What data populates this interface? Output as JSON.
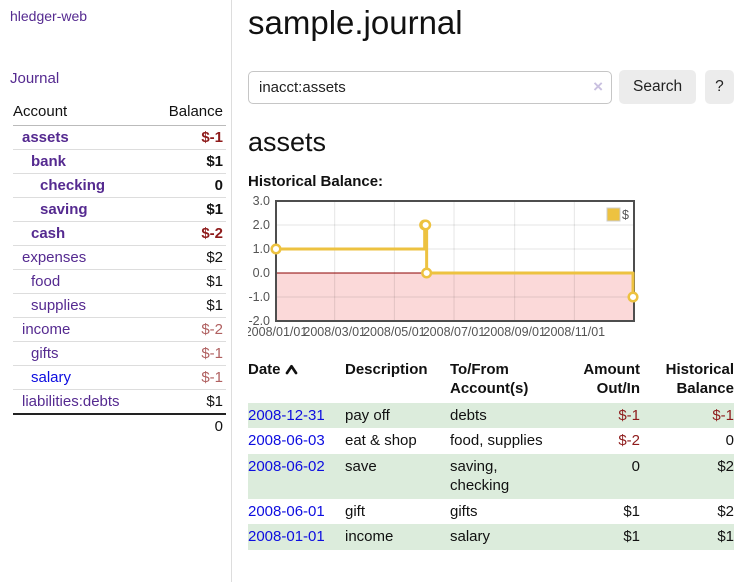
{
  "app": {
    "brand": "hledger-web",
    "nav_journal": "Journal"
  },
  "sidebar": {
    "accounts_table": {
      "headers": {
        "account": "Account",
        "balance": "Balance"
      },
      "rows": [
        {
          "name": "assets",
          "depth": 0,
          "bold": true,
          "link_color": "purple",
          "balance": "$-1",
          "balance_style": "negative"
        },
        {
          "name": "bank",
          "depth": 1,
          "bold": true,
          "link_color": "purple",
          "balance": "$1",
          "balance_style": "normal"
        },
        {
          "name": "checking",
          "depth": 2,
          "bold": true,
          "link_color": "purple",
          "balance": "0",
          "balance_style": "normal"
        },
        {
          "name": "saving",
          "depth": 2,
          "bold": true,
          "link_color": "purple",
          "balance": "$1",
          "balance_style": "normal"
        },
        {
          "name": "cash",
          "depth": 1,
          "bold": true,
          "link_color": "purple",
          "balance": "$-2",
          "balance_style": "negative"
        },
        {
          "name": "expenses",
          "depth": 0,
          "bold": false,
          "link_color": "purple",
          "balance": "$2",
          "balance_style": "normal"
        },
        {
          "name": "food",
          "depth": 1,
          "bold": false,
          "link_color": "purple",
          "balance": "$1",
          "balance_style": "normal"
        },
        {
          "name": "supplies",
          "depth": 1,
          "bold": false,
          "link_color": "purple",
          "balance": "$1",
          "balance_style": "normal"
        },
        {
          "name": "income",
          "depth": 0,
          "bold": false,
          "link_color": "purple",
          "balance": "$-2",
          "balance_style": "negative-muted"
        },
        {
          "name": "gifts",
          "depth": 1,
          "bold": false,
          "link_color": "purple",
          "balance": "$-1",
          "balance_style": "negative-muted"
        },
        {
          "name": "salary",
          "depth": 1,
          "bold": false,
          "link_color": "blue",
          "balance": "$-1",
          "balance_style": "negative-muted"
        },
        {
          "name": "liabilities:debts",
          "depth": 0,
          "bold": false,
          "link_color": "purple",
          "balance": "$1",
          "balance_style": "normal"
        }
      ],
      "total": "0"
    }
  },
  "main": {
    "title": "sample.journal",
    "search": {
      "value": "inacct:assets",
      "clear_icon": "×",
      "button_label": "Search",
      "help_label": "?"
    },
    "account_heading": "assets",
    "chart_label": "Historical Balance:",
    "transactions": {
      "headers": {
        "date": "Date",
        "description": "Description",
        "tofrom": "To/From Account(s)",
        "amount": "Amount Out/In",
        "balance": "Historical Balance"
      },
      "rows": [
        {
          "date": "2008-12-31",
          "description": "pay off",
          "accounts": "debts",
          "amount": "$-1",
          "amount_neg": true,
          "balance": "$-1",
          "balance_neg": true
        },
        {
          "date": "2008-06-03",
          "description": "eat & shop",
          "accounts": "food, supplies",
          "amount": "$-2",
          "amount_neg": true,
          "balance": "0",
          "balance_neg": false
        },
        {
          "date": "2008-06-02",
          "description": "save",
          "accounts": "saving, checking",
          "amount": "0",
          "amount_neg": false,
          "balance": "$2",
          "balance_neg": false
        },
        {
          "date": "2008-06-01",
          "description": "gift",
          "accounts": "gifts",
          "amount": "$1",
          "amount_neg": false,
          "balance": "$2",
          "balance_neg": false
        },
        {
          "date": "2008-01-01",
          "description": "income",
          "accounts": "salary",
          "amount": "$1",
          "amount_neg": false,
          "balance": "$1",
          "balance_neg": false
        }
      ]
    }
  },
  "chart_data": {
    "type": "line",
    "step": true,
    "title": "Historical Balance:",
    "series": [
      {
        "name": "$",
        "color": "#edc240",
        "points": [
          [
            "2008-01-01",
            1
          ],
          [
            "2008-06-01",
            2
          ],
          [
            "2008-06-02",
            2
          ],
          [
            "2008-06-03",
            0
          ],
          [
            "2008-12-31",
            -1
          ]
        ]
      }
    ],
    "x_range": [
      "2008-01-01",
      "2009-01-01"
    ],
    "x_ticks": [
      {
        "date": "2008-01-01",
        "label": "2008/01/01"
      },
      {
        "date": "2008-03-01",
        "label": "2008/03/01"
      },
      {
        "date": "2008-05-01",
        "label": "2008/05/01"
      },
      {
        "date": "2008-07-01",
        "label": "2008/07/01"
      },
      {
        "date": "2008-09-01",
        "label": "2008/09/01"
      },
      {
        "date": "2008-11-01",
        "label": "2008/11/01"
      }
    ],
    "y_ticks": [
      {
        "v": 3,
        "label": "3.0"
      },
      {
        "v": 2,
        "label": "2.0"
      },
      {
        "v": 1,
        "label": "1.0"
      },
      {
        "v": 0,
        "label": "0.0"
      },
      {
        "v": -1,
        "label": "-1.0"
      },
      {
        "v": -2,
        "label": "-2.0"
      }
    ],
    "ylim": [
      -2,
      3
    ],
    "legend": {
      "label": "$",
      "swatch_color": "#edc240",
      "position": "top-right"
    },
    "grid": true,
    "grid_color": "rgba(0,0,0,0.10)",
    "zero_line_color": "#8b0000",
    "negative_region_fill": "#fbd9d9",
    "axis_text_color": "#545454",
    "plot_border_color": "#4e4e4e",
    "marker_fill": "#ffffff"
  },
  "colors": {
    "link_purple": "#552a90",
    "link_blue": "#0d0de0",
    "negative": "#8e1b1b",
    "negative_muted": "#b06060",
    "row_stripe_green": "#dcecdc",
    "button_bg": "#ececec"
  }
}
